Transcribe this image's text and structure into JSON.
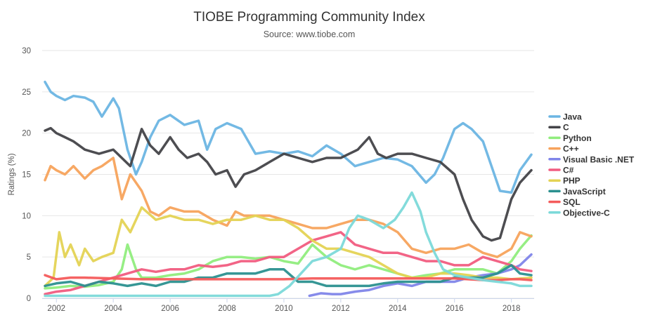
{
  "chart_data": {
    "type": "line",
    "title": "TIOBE Programming Community Index",
    "subtitle": "Source: www.tiobe.com",
    "xlabel": "",
    "ylabel": "Ratings (%)",
    "xlim": [
      2001.5,
      2018.8
    ],
    "ylim": [
      0,
      30
    ],
    "y_ticks": [
      "0",
      "5",
      "10",
      "15",
      "20",
      "25",
      "30"
    ],
    "x_ticks": [
      "2002",
      "2004",
      "2006",
      "2008",
      "2010",
      "2012",
      "2014",
      "2016",
      "2018"
    ],
    "grid": "horizontal",
    "legend_position": "right",
    "series": [
      {
        "name": "Java",
        "color": "#6bb5e3",
        "x": [
          2001.6,
          2001.8,
          2002.0,
          2002.3,
          2002.6,
          2003.0,
          2003.3,
          2003.6,
          2004.0,
          2004.2,
          2004.5,
          2004.8,
          2005.0,
          2005.3,
          2005.6,
          2006.0,
          2006.5,
          2007.0,
          2007.3,
          2007.6,
          2008.0,
          2008.5,
          2009.0,
          2009.5,
          2010.0,
          2010.5,
          2011.0,
          2011.5,
          2012.0,
          2012.5,
          2013.0,
          2013.5,
          2014.0,
          2014.5,
          2015.0,
          2015.3,
          2015.6,
          2016.0,
          2016.3,
          2016.6,
          2017.0,
          2017.3,
          2017.6,
          2018.0,
          2018.3,
          2018.7
        ],
        "values": [
          26.2,
          25.0,
          24.5,
          24.0,
          24.5,
          24.3,
          23.8,
          22.0,
          24.2,
          23.0,
          18.0,
          15.0,
          16.5,
          19.5,
          21.5,
          22.2,
          21.0,
          21.5,
          18.0,
          20.5,
          21.2,
          20.5,
          17.5,
          17.8,
          17.5,
          17.8,
          17.2,
          18.5,
          17.5,
          16.0,
          16.5,
          17.0,
          16.8,
          16.0,
          14.0,
          15.0,
          17.0,
          20.5,
          21.2,
          20.5,
          19.0,
          16.0,
          13.0,
          12.8,
          15.5,
          17.4
        ]
      },
      {
        "name": "C",
        "color": "#434348",
        "x": [
          2001.6,
          2001.8,
          2002.0,
          2002.3,
          2002.6,
          2003.0,
          2003.5,
          2004.0,
          2004.3,
          2004.6,
          2005.0,
          2005.3,
          2005.6,
          2006.0,
          2006.3,
          2006.6,
          2007.0,
          2007.3,
          2007.6,
          2008.0,
          2008.3,
          2008.6,
          2009.0,
          2009.5,
          2010.0,
          2010.5,
          2011.0,
          2011.5,
          2012.0,
          2012.3,
          2012.6,
          2013.0,
          2013.3,
          2013.6,
          2014.0,
          2014.5,
          2015.0,
          2015.5,
          2016.0,
          2016.3,
          2016.6,
          2017.0,
          2017.3,
          2017.6,
          2018.0,
          2018.3,
          2018.7
        ],
        "values": [
          20.3,
          20.6,
          20.0,
          19.5,
          19.0,
          18.0,
          17.5,
          18.0,
          17.0,
          16.0,
          20.5,
          18.5,
          17.5,
          19.5,
          18.0,
          17.0,
          17.5,
          16.5,
          15.0,
          15.5,
          13.5,
          15.0,
          15.5,
          16.5,
          17.5,
          17.0,
          16.5,
          17.0,
          17.0,
          17.5,
          18.0,
          19.5,
          17.5,
          17.0,
          17.5,
          17.5,
          17.0,
          16.5,
          15.0,
          12.0,
          9.5,
          7.5,
          7.0,
          7.3,
          12.0,
          14.0,
          15.5
        ]
      },
      {
        "name": "Python",
        "color": "#90ed7d",
        "x": [
          2001.6,
          2002.0,
          2002.5,
          2003.0,
          2003.5,
          2004.0,
          2004.3,
          2004.5,
          2004.8,
          2005.0,
          2005.5,
          2006.0,
          2006.5,
          2007.0,
          2007.5,
          2008.0,
          2008.5,
          2009.0,
          2009.5,
          2010.0,
          2010.5,
          2011.0,
          2011.5,
          2012.0,
          2012.5,
          2013.0,
          2013.5,
          2014.0,
          2014.5,
          2015.0,
          2015.5,
          2016.0,
          2016.5,
          2017.0,
          2017.5,
          2018.0,
          2018.3,
          2018.7
        ],
        "values": [
          1.2,
          1.3,
          1.5,
          1.4,
          1.6,
          2.0,
          3.5,
          6.5,
          3.5,
          2.5,
          2.5,
          2.8,
          3.0,
          3.5,
          4.5,
          5.0,
          5.0,
          4.8,
          5.0,
          4.5,
          4.2,
          6.5,
          5.0,
          4.0,
          3.5,
          4.0,
          3.5,
          3.0,
          2.5,
          2.8,
          3.0,
          3.5,
          3.5,
          3.5,
          3.0,
          4.5,
          6.0,
          7.6
        ]
      },
      {
        "name": "C++",
        "color": "#f7a35c",
        "x": [
          2001.6,
          2001.8,
          2002.0,
          2002.3,
          2002.6,
          2003.0,
          2003.3,
          2003.6,
          2004.0,
          2004.3,
          2004.6,
          2005.0,
          2005.3,
          2005.6,
          2006.0,
          2006.5,
          2007.0,
          2007.5,
          2008.0,
          2008.3,
          2008.6,
          2009.0,
          2009.5,
          2010.0,
          2010.5,
          2011.0,
          2011.5,
          2012.0,
          2012.5,
          2013.0,
          2013.5,
          2014.0,
          2014.5,
          2015.0,
          2015.5,
          2016.0,
          2016.5,
          2017.0,
          2017.5,
          2018.0,
          2018.3,
          2018.7
        ],
        "values": [
          14.3,
          16.0,
          15.5,
          15.0,
          16.0,
          14.5,
          15.5,
          16.0,
          17.0,
          12.0,
          15.0,
          13.0,
          10.5,
          10.0,
          11.0,
          10.5,
          10.5,
          9.5,
          8.8,
          10.5,
          10.0,
          10.0,
          10.0,
          9.5,
          9.0,
          8.5,
          8.5,
          9.0,
          9.5,
          9.5,
          9.0,
          8.0,
          6.0,
          5.5,
          6.0,
          6.0,
          6.5,
          5.5,
          5.0,
          6.0,
          8.0,
          7.5
        ]
      },
      {
        "name": "Visual Basic .NET",
        "color": "#8085e9",
        "x": [
          2010.9,
          2011.3,
          2011.7,
          2012.0,
          2012.5,
          2013.0,
          2013.5,
          2014.0,
          2014.5,
          2015.0,
          2015.5,
          2016.0,
          2016.5,
          2017.0,
          2017.5,
          2018.0,
          2018.3,
          2018.7
        ],
        "values": [
          0.3,
          0.6,
          0.5,
          0.5,
          0.8,
          1.0,
          1.5,
          1.8,
          1.5,
          2.0,
          2.0,
          2.0,
          2.5,
          2.8,
          3.0,
          3.5,
          4.0,
          5.3
        ]
      },
      {
        "name": "C#",
        "color": "#f15c80",
        "x": [
          2001.6,
          2002.0,
          2002.5,
          2003.0,
          2003.5,
          2004.0,
          2004.5,
          2005.0,
          2005.5,
          2006.0,
          2006.5,
          2007.0,
          2007.5,
          2008.0,
          2008.5,
          2009.0,
          2009.5,
          2010.0,
          2010.5,
          2011.0,
          2011.5,
          2012.0,
          2012.5,
          2013.0,
          2013.5,
          2014.0,
          2014.5,
          2015.0,
          2015.5,
          2016.0,
          2016.5,
          2017.0,
          2017.5,
          2018.0,
          2018.3,
          2018.7
        ],
        "values": [
          0.5,
          0.8,
          1.0,
          1.5,
          2.0,
          2.5,
          3.0,
          3.5,
          3.2,
          3.5,
          3.5,
          4.0,
          3.8,
          4.0,
          4.5,
          4.5,
          5.0,
          5.0,
          6.0,
          7.0,
          7.5,
          8.0,
          6.5,
          6.0,
          5.5,
          5.5,
          5.0,
          4.5,
          4.5,
          4.0,
          4.0,
          5.0,
          4.5,
          4.0,
          3.5,
          3.3
        ]
      },
      {
        "name": "PHP",
        "color": "#e4d354",
        "x": [
          2001.6,
          2001.9,
          2002.1,
          2002.3,
          2002.5,
          2002.8,
          2003.0,
          2003.3,
          2003.6,
          2004.0,
          2004.3,
          2004.6,
          2005.0,
          2005.5,
          2006.0,
          2006.5,
          2007.0,
          2007.5,
          2008.0,
          2008.5,
          2009.0,
          2009.5,
          2010.0,
          2010.5,
          2011.0,
          2011.5,
          2012.0,
          2012.5,
          2013.0,
          2013.5,
          2014.0,
          2014.5,
          2015.0,
          2015.5,
          2016.0,
          2016.5,
          2017.0,
          2017.5,
          2018.0,
          2018.7
        ],
        "values": [
          1.5,
          2.5,
          8.0,
          5.0,
          6.5,
          4.0,
          6.0,
          4.5,
          5.0,
          5.5,
          9.5,
          8.0,
          11.0,
          9.5,
          10.0,
          9.5,
          9.5,
          9.0,
          9.5,
          9.5,
          10.0,
          9.5,
          9.5,
          8.5,
          7.0,
          6.0,
          6.0,
          5.5,
          5.0,
          4.0,
          3.0,
          2.5,
          2.5,
          3.0,
          3.0,
          2.8,
          2.5,
          2.5,
          2.3,
          2.5
        ]
      },
      {
        "name": "JavaScript",
        "color": "#2b908f",
        "x": [
          2001.6,
          2002.0,
          2002.5,
          2003.0,
          2003.5,
          2004.0,
          2004.5,
          2005.0,
          2005.5,
          2006.0,
          2006.5,
          2007.0,
          2007.5,
          2008.0,
          2008.5,
          2009.0,
          2009.5,
          2010.0,
          2010.5,
          2011.0,
          2011.5,
          2012.0,
          2012.5,
          2013.0,
          2013.5,
          2014.0,
          2014.5,
          2015.0,
          2015.5,
          2016.0,
          2016.5,
          2017.0,
          2017.5,
          2018.0,
          2018.3,
          2018.7
        ],
        "values": [
          1.5,
          1.8,
          2.0,
          1.5,
          2.0,
          1.8,
          1.5,
          1.8,
          1.5,
          2.0,
          2.0,
          2.5,
          2.5,
          3.0,
          3.0,
          3.0,
          3.5,
          3.5,
          2.0,
          2.0,
          1.5,
          1.5,
          1.5,
          1.5,
          1.8,
          2.0,
          2.0,
          2.0,
          2.0,
          2.5,
          2.5,
          2.5,
          3.0,
          4.0,
          3.0,
          2.8
        ]
      },
      {
        "name": "SQL",
        "color": "#f45b5b",
        "x": [
          2001.6,
          2002.0,
          2002.5,
          2003.0,
          2004.0,
          2005.0,
          2006.0,
          2007.0,
          2008.0,
          2009.0,
          2010.0,
          2011.0,
          2012.0,
          2013.0,
          2014.0,
          2015.0,
          2016.0,
          2017.0,
          2017.5,
          2018.0,
          2018.3,
          2018.7
        ],
        "values": [
          2.8,
          2.3,
          2.5,
          2.5,
          2.4,
          2.3,
          2.3,
          2.3,
          2.3,
          2.3,
          2.3,
          2.4,
          2.4,
          2.4,
          2.4,
          2.4,
          2.4,
          2.2,
          2.2,
          2.3,
          2.3,
          2.2
        ]
      },
      {
        "name": "Objective-C",
        "color": "#7cd9d9",
        "x": [
          2001.6,
          2004.0,
          2006.0,
          2008.0,
          2009.5,
          2009.8,
          2010.2,
          2010.6,
          2011.0,
          2011.5,
          2012.0,
          2012.3,
          2012.6,
          2013.0,
          2013.5,
          2013.9,
          2014.2,
          2014.5,
          2014.8,
          2015.0,
          2015.3,
          2015.6,
          2016.0,
          2016.5,
          2017.0,
          2017.5,
          2018.0,
          2018.3,
          2018.7
        ],
        "values": [
          0.3,
          0.3,
          0.3,
          0.3,
          0.3,
          0.5,
          1.5,
          3.0,
          4.5,
          5.0,
          6.0,
          8.5,
          10.0,
          9.5,
          8.5,
          9.5,
          11.0,
          12.8,
          10.5,
          8.0,
          5.5,
          3.5,
          2.8,
          2.5,
          2.2,
          2.0,
          1.8,
          1.5,
          1.5
        ]
      }
    ]
  }
}
